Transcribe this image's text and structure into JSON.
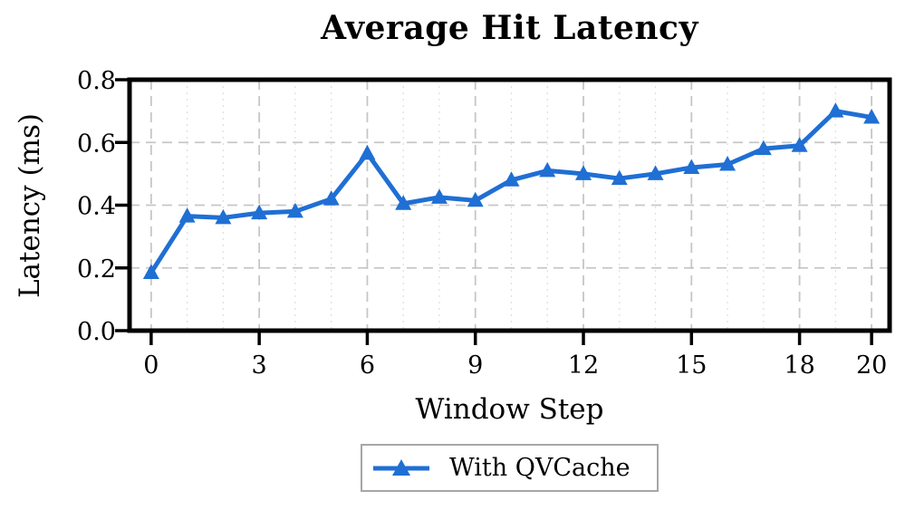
{
  "title": "Average Hit Latency",
  "axes": {
    "xlabel": "Window Step",
    "ylabel": "Latency (ms)"
  },
  "legend": {
    "items": [
      {
        "label": "With QVCache",
        "marker": "triangle-up",
        "color": "#1f6fd4"
      }
    ]
  },
  "colors": {
    "line": "#1f6fd4",
    "axis": "#000000",
    "grid_major": "#c6c6c6",
    "grid_minor": "#e0e0e0",
    "legend_border": "#a6a6a6",
    "background": "#ffffff",
    "text": "#000000"
  },
  "chart_data": {
    "type": "line",
    "title": "Average Hit Latency",
    "xlabel": "Window Step",
    "ylabel": "Latency (ms)",
    "x": [
      0,
      1,
      2,
      3,
      4,
      5,
      6,
      7,
      8,
      9,
      10,
      11,
      12,
      13,
      14,
      15,
      16,
      17,
      18,
      19,
      20
    ],
    "series": [
      {
        "name": "With QVCache",
        "color": "#1f6fd4",
        "marker": "triangle-up",
        "values": [
          0.185,
          0.365,
          0.36,
          0.375,
          0.38,
          0.42,
          0.565,
          0.405,
          0.425,
          0.415,
          0.48,
          0.51,
          0.5,
          0.485,
          0.5,
          0.52,
          0.53,
          0.58,
          0.59,
          0.7,
          0.68
        ]
      }
    ],
    "xlim": [
      -0.6,
      20.5
    ],
    "ylim": [
      0.0,
      0.8
    ],
    "x_major_ticks": [
      0,
      3,
      6,
      9,
      12,
      15,
      18,
      20
    ],
    "x_tick_labels": [
      "0",
      "3",
      "6",
      "9",
      "12",
      "15",
      "18",
      "20"
    ],
    "x_minor_ticks_every": 1,
    "y_major_ticks": [
      0.0,
      0.2,
      0.4,
      0.6,
      0.8
    ],
    "y_tick_labels": [
      "0.0",
      "0.2",
      "0.4",
      "0.6",
      "0.8"
    ],
    "grid": "major dashed both axes; minor dotted vertical only",
    "legend_position": "below chart, centered"
  }
}
